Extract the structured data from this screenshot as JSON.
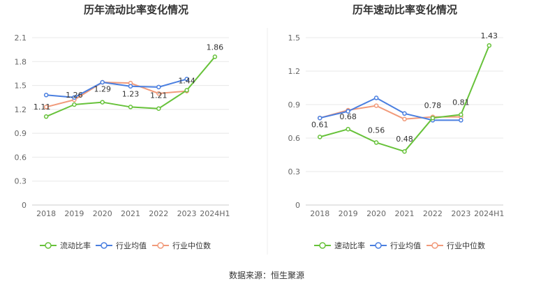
{
  "chart_data": [
    {
      "type": "line",
      "title": "历年流动比率变化情况",
      "categories": [
        "2018",
        "2019",
        "2020",
        "2021",
        "2022",
        "2023",
        "2024H1"
      ],
      "yticks": [
        "0",
        "0.3",
        "0.6",
        "0.9",
        "1.2",
        "1.5",
        "1.8",
        "2.1"
      ],
      "ylim": [
        0,
        2.1
      ],
      "series": [
        {
          "name": "流动比率",
          "color": "#67c23a",
          "values": [
            1.11,
            1.26,
            1.29,
            1.23,
            1.21,
            1.44,
            1.86
          ],
          "labels": [
            "1.11",
            "1.26",
            "1.29",
            "1.23",
            "1.21",
            "1.44",
            "1.86"
          ]
        },
        {
          "name": "行业均值",
          "color": "#4a7fe0",
          "values": [
            1.38,
            1.35,
            1.54,
            1.49,
            1.48,
            1.58,
            null
          ]
        },
        {
          "name": "行业中位数",
          "color": "#f19a7a",
          "values": [
            1.23,
            1.32,
            1.54,
            1.53,
            1.4,
            1.43,
            null
          ]
        }
      ]
    },
    {
      "type": "line",
      "title": "历年速动比率变化情况",
      "categories": [
        "2018",
        "2019",
        "2020",
        "2021",
        "2022",
        "2023",
        "2024H1"
      ],
      "yticks": [
        "0",
        "0.3",
        "0.6",
        "0.9",
        "1.2",
        "1.5"
      ],
      "ylim": [
        0,
        1.5
      ],
      "series": [
        {
          "name": "速动比率",
          "color": "#67c23a",
          "values": [
            0.61,
            0.68,
            0.56,
            0.48,
            0.78,
            0.81,
            1.43
          ],
          "labels": [
            "0.61",
            "0.68",
            "0.56",
            "0.48",
            "0.78",
            "0.81",
            "1.43"
          ]
        },
        {
          "name": "行业均值",
          "color": "#4a7fe0",
          "values": [
            0.78,
            0.84,
            0.96,
            0.82,
            0.76,
            0.76,
            null
          ]
        },
        {
          "name": "行业中位数",
          "color": "#f19a7a",
          "values": [
            0.78,
            0.85,
            0.89,
            0.77,
            0.79,
            0.79,
            null
          ]
        }
      ]
    }
  ],
  "footer": {
    "source": "数据来源：恒生聚源"
  }
}
